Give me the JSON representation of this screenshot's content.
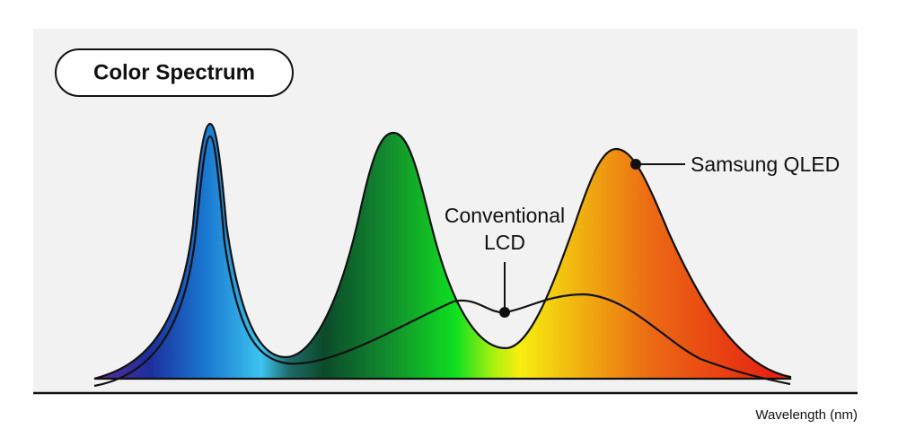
{
  "title": "Color Spectrum",
  "labels": {
    "qled": "Samsung QLED",
    "lcd": [
      "Conventional",
      "LCD"
    ]
  },
  "axis_label": "Wavelength (nm)"
}
